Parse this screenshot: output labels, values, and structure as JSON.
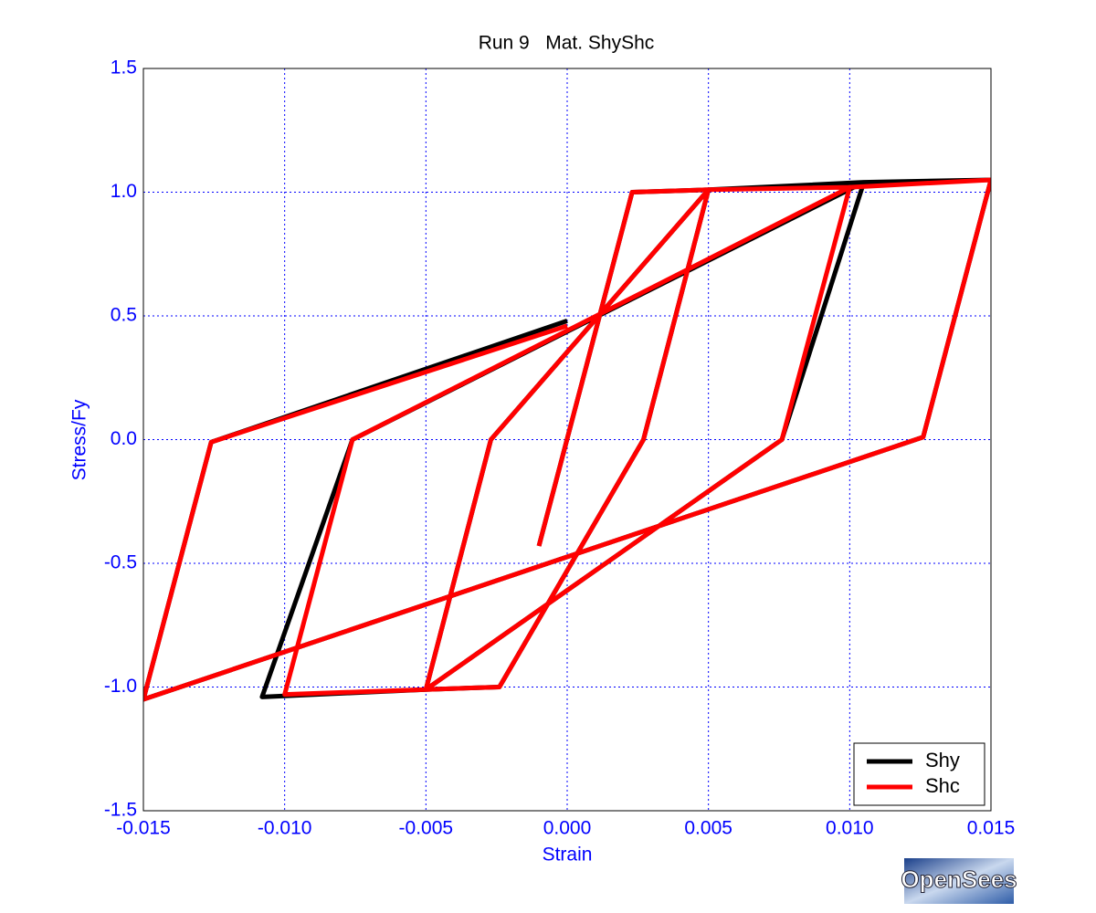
{
  "chart_data": {
    "type": "line",
    "title": "Run 9   Mat. ShyShc",
    "x_label": "Strain",
    "y_label": "Stress/Fy",
    "xlim": [
      -0.015,
      0.015
    ],
    "ylim": [
      -1.5,
      1.5
    ],
    "xticks": [
      {
        "value": -0.015,
        "label": "-0.015"
      },
      {
        "value": -0.01,
        "label": "-0.010"
      },
      {
        "value": -0.005,
        "label": "-0.005"
      },
      {
        "value": 0,
        "label": "0.000"
      },
      {
        "value": 0.005,
        "label": "0.005"
      },
      {
        "value": 0.01,
        "label": "0.010"
      },
      {
        "value": 0.015,
        "label": "0.015"
      }
    ],
    "yticks": [
      -1.5,
      {
        "value": -1,
        "label": "-1.0"
      },
      -0.5,
      {
        "value": 0,
        "label": "0.0"
      },
      0.5,
      {
        "value": 1,
        "label": "1.0"
      },
      1.5
    ],
    "grid": true,
    "legend": "lower right",
    "series": [
      {
        "name": "Shy",
        "color": "#000000",
        "x": [
          -0.001,
          0.0023,
          0.005,
          0.0027,
          -0.0024,
          -0.005,
          -0.0027,
          0.005,
          0.0105,
          0.0076,
          -0.005,
          -0.0108,
          -0.0076,
          0.0105,
          0.015,
          0.0126,
          -0.015,
          -0.0126,
          0.0
        ],
        "values": [
          -0.43,
          1.0,
          1.01,
          0.0,
          -1.0,
          -1.01,
          0.0,
          1.01,
          1.04,
          0.0,
          -1.01,
          -1.04,
          0.0,
          1.04,
          1.05,
          0.01,
          -1.05,
          -0.01,
          0.48
        ]
      },
      {
        "name": "Shc",
        "color": "#ff0000",
        "x": [
          -0.001,
          0.0023,
          0.005,
          0.0027,
          -0.0024,
          -0.005,
          -0.0027,
          0.005,
          0.01,
          0.0076,
          -0.005,
          -0.01,
          -0.0076,
          0.01,
          0.015,
          0.0126,
          -0.015,
          -0.0126,
          0.0
        ],
        "values": [
          -0.43,
          1.0,
          1.01,
          0.0,
          -1.0,
          -1.01,
          0.0,
          1.01,
          1.02,
          0.0,
          -1.01,
          -1.03,
          0.0,
          1.02,
          1.05,
          0.01,
          -1.05,
          -0.01,
          0.46
        ]
      }
    ]
  },
  "logo": "OpenSees"
}
